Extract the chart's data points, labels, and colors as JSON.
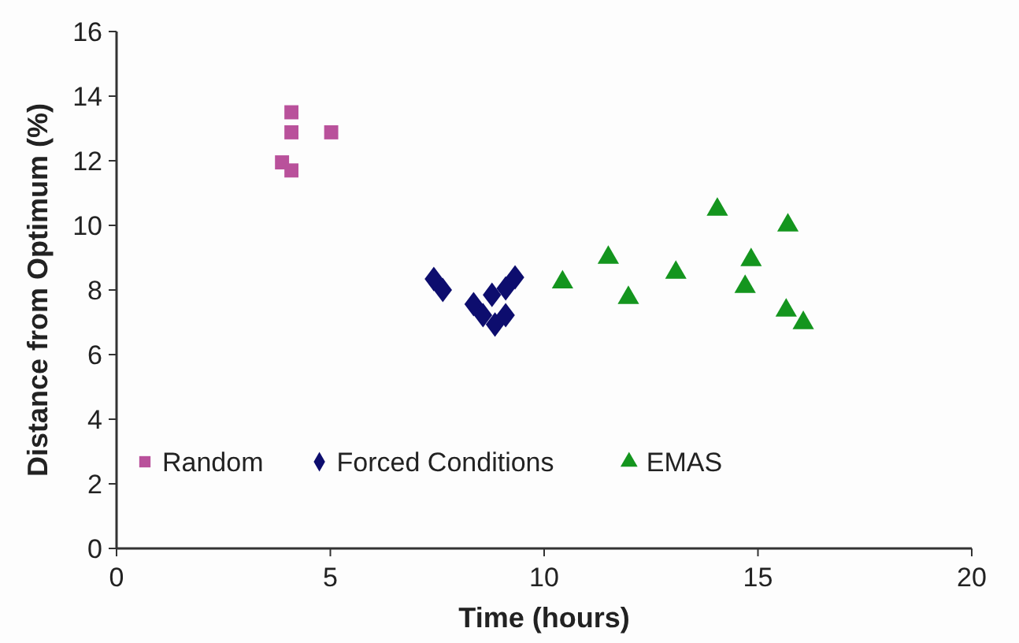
{
  "chart_data": {
    "type": "scatter",
    "xlabel": "Time (hours)",
    "ylabel": "Distance from Optimum (%)",
    "xlim": [
      0,
      20
    ],
    "xticks": [
      0,
      5,
      10,
      15,
      20
    ],
    "ylim": [
      0,
      16
    ],
    "yticks": [
      0,
      2,
      4,
      6,
      8,
      10,
      12,
      14,
      16
    ],
    "grid": false,
    "legend": "bottom left",
    "series": [
      {
        "name": "Random",
        "color": "#b9519b",
        "marker": "square",
        "x": [
          3.87,
          4.09,
          4.09,
          4.09,
          5.02
        ],
        "values": [
          11.95,
          11.7,
          12.88,
          13.5,
          12.88
        ]
      },
      {
        "name": "Forced Conditions",
        "color": "#0d0d6e",
        "marker": "diamond",
        "x": [
          7.42,
          7.63,
          8.35,
          8.57,
          8.85,
          8.78,
          9.1,
          9.32,
          9.1
        ],
        "values": [
          8.34,
          8.0,
          7.56,
          7.22,
          6.93,
          7.85,
          8.05,
          8.39,
          7.22
        ]
      },
      {
        "name": "EMAS",
        "color": "#14951e",
        "marker": "triangle",
        "x": [
          10.43,
          11.5,
          11.97,
          13.08,
          14.05,
          14.84,
          14.7,
          15.7,
          15.66,
          16.06
        ],
        "values": [
          8.24,
          9.0,
          7.76,
          8.54,
          10.49,
          8.93,
          8.1,
          10.0,
          7.37,
          6.98
        ]
      }
    ]
  }
}
